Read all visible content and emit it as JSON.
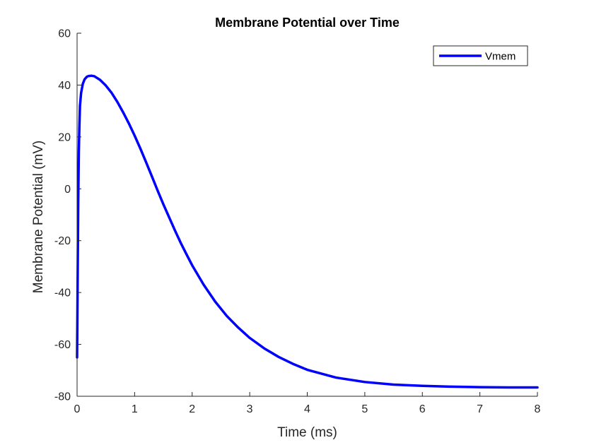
{
  "chart_data": {
    "type": "line",
    "title": "Membrane Potential over Time",
    "xlabel": "Time (ms)",
    "ylabel": "Membrane Potential (mV)",
    "xlim": [
      0,
      8
    ],
    "ylim": [
      -80,
      60
    ],
    "xticks": [
      0,
      1,
      2,
      3,
      4,
      5,
      6,
      7,
      8
    ],
    "yticks": [
      -80,
      -60,
      -40,
      -20,
      0,
      20,
      40,
      60
    ],
    "grid": false,
    "legend_location": "top-right",
    "series": [
      {
        "name": "Vmem",
        "color": "#0000ff",
        "x": [
          0,
          0.01,
          0.02,
          0.03,
          0.04,
          0.05,
          0.07,
          0.1,
          0.13,
          0.17,
          0.2,
          0.25,
          0.3,
          0.4,
          0.5,
          0.6,
          0.7,
          0.8,
          0.9,
          1.0,
          1.1,
          1.2,
          1.3,
          1.4,
          1.5,
          1.6,
          1.7,
          1.8,
          1.9,
          2.0,
          2.2,
          2.4,
          2.6,
          2.8,
          3.0,
          3.25,
          3.5,
          3.75,
          4.0,
          4.5,
          5.0,
          5.5,
          6.0,
          6.5,
          7.0,
          7.5,
          8.0
        ],
        "y": [
          -65,
          -35,
          -5,
          14,
          24,
          32,
          37,
          40.5,
          42.2,
          43.2,
          43.5,
          43.6,
          43.4,
          42,
          39.8,
          37,
          33.5,
          29.5,
          25.2,
          20.5,
          15.5,
          10.2,
          4.8,
          -0.7,
          -6,
          -11,
          -16,
          -20.8,
          -25.2,
          -29.5,
          -37,
          -43.5,
          -49,
          -53.5,
          -57.5,
          -61.5,
          -64.8,
          -67.5,
          -69.8,
          -72.8,
          -74.5,
          -75.5,
          -76,
          -76.3,
          -76.5,
          -76.6,
          -76.6
        ]
      }
    ]
  }
}
